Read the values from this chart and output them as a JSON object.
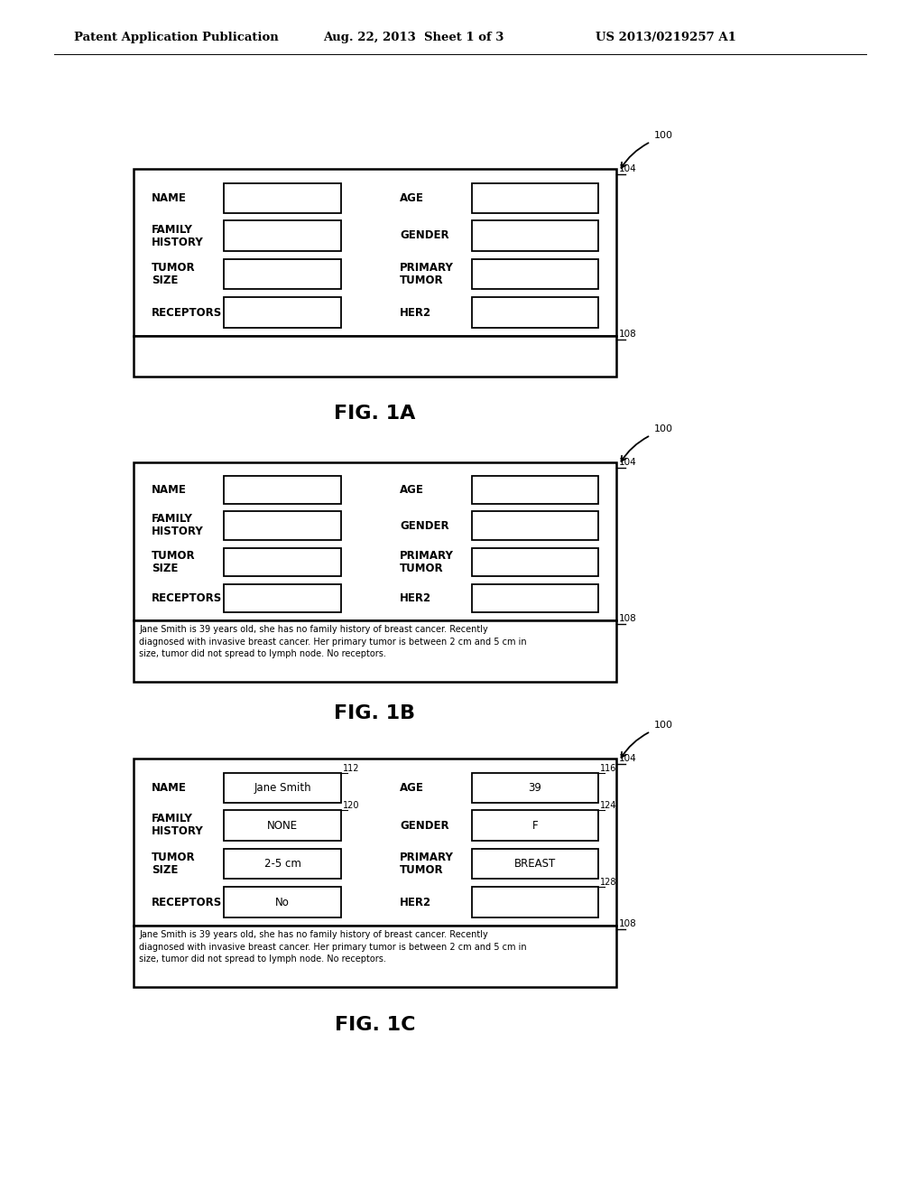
{
  "header_left": "Patent Application Publication",
  "header_center": "Aug. 22, 2013  Sheet 1 of 3",
  "header_right": "US 2013/0219257 A1",
  "background": "#ffffff",
  "figures": [
    {
      "id": "1A",
      "label": "FIG. 1A",
      "fields_left": [
        "NAME",
        "FAMILY\nHISTORY",
        "TUMOR\nSIZE",
        "RECEPTORS"
      ],
      "fields_right": [
        "AGE",
        "GENDER",
        "PRIMARY\nTUMOR",
        "HER2"
      ],
      "values_left": [
        "",
        "",
        "",
        ""
      ],
      "values_right": [
        "",
        "",
        "",
        ""
      ],
      "field_refs_left": [
        "",
        "",
        "",
        ""
      ],
      "field_refs_right": [
        "",
        "",
        "",
        ""
      ],
      "text_area": "",
      "has_text": false
    },
    {
      "id": "1B",
      "label": "FIG. 1B",
      "fields_left": [
        "NAME",
        "FAMILY\nHISTORY",
        "TUMOR\nSIZE",
        "RECEPTORS"
      ],
      "fields_right": [
        "AGE",
        "GENDER",
        "PRIMARY\nTUMOR",
        "HER2"
      ],
      "values_left": [
        "",
        "",
        "",
        ""
      ],
      "values_right": [
        "",
        "",
        "",
        ""
      ],
      "field_refs_left": [
        "",
        "",
        "",
        ""
      ],
      "field_refs_right": [
        "",
        "",
        "",
        ""
      ],
      "text_area": "Jane Smith is 39 years old, she has no family history of breast cancer. Recently\ndiagnosed with invasive breast cancer. Her primary tumor is between 2 cm and 5 cm in\nsize, tumor did not spread to lymph node. No receptors.",
      "has_text": true
    },
    {
      "id": "1C",
      "label": "FIG. 1C",
      "fields_left": [
        "NAME",
        "FAMILY\nHISTORY",
        "TUMOR\nSIZE",
        "RECEPTORS"
      ],
      "fields_right": [
        "AGE",
        "GENDER",
        "PRIMARY\nTUMOR",
        "HER2"
      ],
      "values_left": [
        "Jane Smith",
        "NONE",
        "2-5 cm",
        "No"
      ],
      "values_right": [
        "39",
        "F",
        "BREAST",
        ""
      ],
      "field_refs_left": [
        "112",
        "120",
        "",
        ""
      ],
      "field_refs_right": [
        "116",
        "124",
        "",
        "128"
      ],
      "text_area": "Jane Smith is 39 years old, she has no family history of breast cancer. Recently\ndiagnosed with invasive breast cancer. Her primary tumor is between 2 cm and 5 cm in\nsize, tumor did not spread to lymph node. No receptors.",
      "has_text": true
    }
  ]
}
